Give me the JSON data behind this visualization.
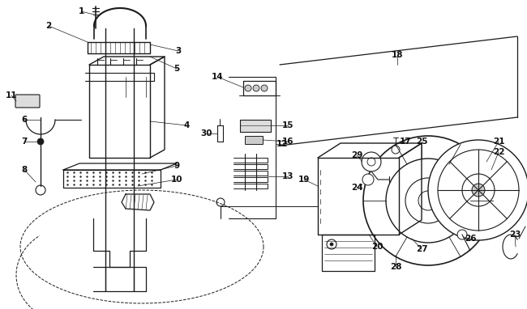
{
  "background_color": "#ffffff",
  "line_color": "#1a1a1a",
  "label_color": "#111111",
  "label_fontsize": 7.5,
  "fig_width": 6.5,
  "fig_height": 3.82,
  "dpi": 100
}
